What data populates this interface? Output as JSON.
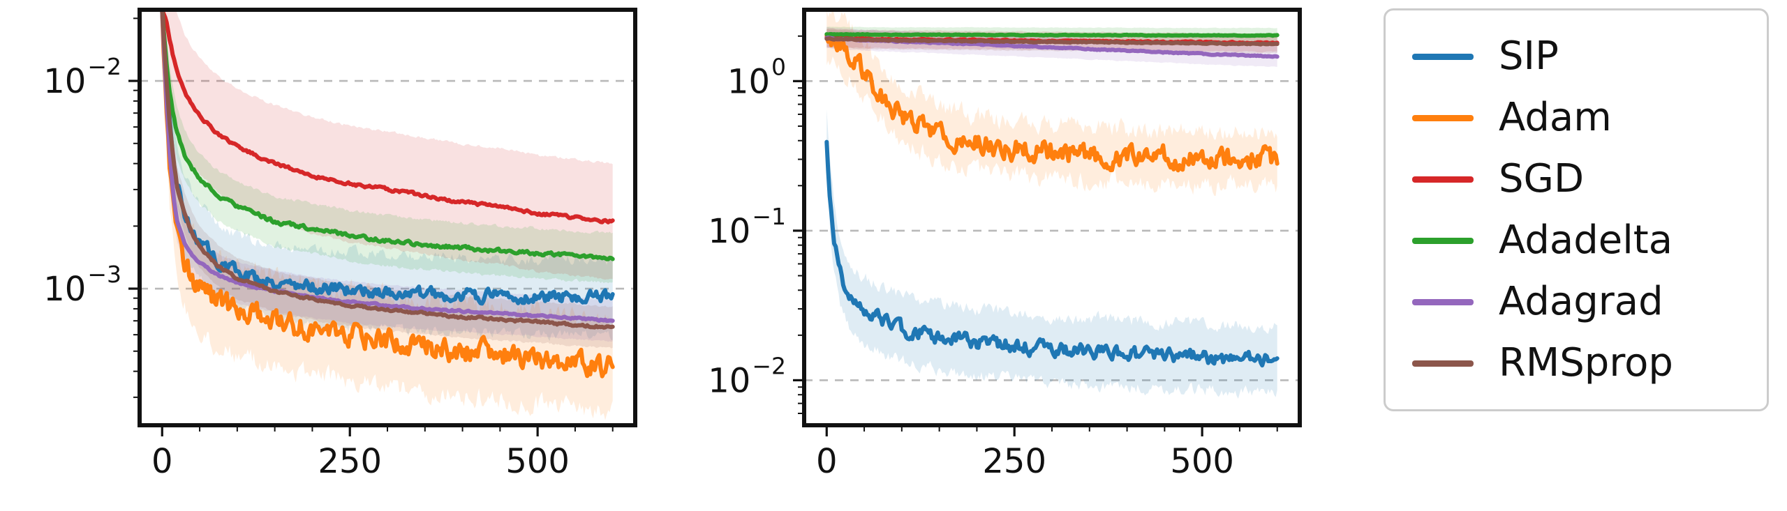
{
  "legend": {
    "items": [
      {
        "label": "SIP",
        "color": "#1f77b4"
      },
      {
        "label": "Adam",
        "color": "#ff7f0e"
      },
      {
        "label": "SGD",
        "color": "#d62728"
      },
      {
        "label": "Adadelta",
        "color": "#2ca02c"
      },
      {
        "label": "Adagrad",
        "color": "#9467bd"
      },
      {
        "label": "RMSprop",
        "color": "#8c564b"
      }
    ]
  },
  "chart_data": [
    {
      "id": "left-plot",
      "type": "line",
      "title": "",
      "xlabel": "",
      "ylabel": "",
      "yscale": "log",
      "grid": "dashed-horizontal",
      "xlim": [
        -30,
        630
      ],
      "ylim": [
        0.00022,
        0.022
      ],
      "x_ticks": [
        {
          "v": 0,
          "label": "0"
        },
        {
          "v": 250,
          "label": "250"
        },
        {
          "v": 500,
          "label": "500"
        }
      ],
      "x_minor_step": 50,
      "y_ticks": [
        {
          "v": 0.01,
          "base": "10",
          "exp": "−2"
        },
        {
          "v": 0.001,
          "base": "10",
          "exp": "−3"
        }
      ],
      "x": [
        0,
        5,
        10,
        15,
        20,
        30,
        40,
        50,
        75,
        100,
        150,
        200,
        250,
        300,
        350,
        400,
        450,
        500,
        550,
        600
      ],
      "series": [
        {
          "name": "SIP",
          "color": "#1f77b4",
          "seed": 3,
          "noise": 0.05,
          "band": 0.18,
          "values": [
            0.022,
            0.01,
            0.006,
            0.0042,
            0.0032,
            0.0023,
            0.0019,
            0.0017,
            0.00135,
            0.0012,
            0.00108,
            0.00102,
            0.00099,
            0.00096,
            0.00094,
            0.00093,
            0.00092,
            0.00091,
            0.00092,
            0.0009
          ]
        },
        {
          "name": "Adam",
          "color": "#ff7f0e",
          "seed": 7,
          "noise": 0.09,
          "band": 0.22,
          "values": [
            0.022,
            0.0085,
            0.0042,
            0.0026,
            0.0019,
            0.0014,
            0.00115,
            0.001,
            0.00086,
            0.00079,
            0.0007,
            0.00064,
            0.0006,
            0.00056,
            0.00053,
            0.0005,
            0.00048,
            0.00046,
            0.00044,
            0.00042
          ]
        },
        {
          "name": "SGD",
          "color": "#d62728",
          "seed": 11,
          "noise": 0.012,
          "band": 0.28,
          "values": [
            0.022,
            0.02,
            0.016,
            0.013,
            0.011,
            0.0088,
            0.0076,
            0.0068,
            0.0055,
            0.0048,
            0.004,
            0.0035,
            0.0032,
            0.003,
            0.0028,
            0.0026,
            0.0025,
            0.0023,
            0.0022,
            0.0021
          ]
        },
        {
          "name": "Adadelta",
          "color": "#2ca02c",
          "seed": 17,
          "noise": 0.015,
          "band": 0.12,
          "values": [
            0.022,
            0.013,
            0.009,
            0.0068,
            0.0056,
            0.0044,
            0.0038,
            0.0034,
            0.0028,
            0.0025,
            0.0021,
            0.00195,
            0.0018,
            0.0017,
            0.00163,
            0.00157,
            0.00152,
            0.00148,
            0.00144,
            0.0014
          ]
        },
        {
          "name": "Adagrad",
          "color": "#9467bd",
          "seed": 23,
          "noise": 0.008,
          "band": 0.1,
          "values": [
            0.022,
            0.009,
            0.0045,
            0.0028,
            0.0021,
            0.00165,
            0.00145,
            0.00133,
            0.00116,
            0.00107,
            0.00097,
            0.00091,
            0.00086,
            0.00083,
            0.0008,
            0.00078,
            0.00076,
            0.00074,
            0.00072,
            0.0007
          ]
        },
        {
          "name": "RMSprop",
          "color": "#8c564b",
          "seed": 29,
          "noise": 0.01,
          "band": 0.1,
          "values": [
            0.022,
            0.011,
            0.0062,
            0.0042,
            0.0031,
            0.0023,
            0.00185,
            0.00158,
            0.00128,
            0.00112,
            0.00097,
            0.00089,
            0.00083,
            0.00079,
            0.00076,
            0.00073,
            0.00071,
            0.00069,
            0.00067,
            0.00065
          ]
        }
      ]
    },
    {
      "id": "right-plot",
      "type": "line",
      "title": "",
      "xlabel": "",
      "ylabel": "",
      "yscale": "log",
      "grid": "dashed-horizontal",
      "xlim": [
        -30,
        630
      ],
      "ylim": [
        0.005,
        3.0
      ],
      "x_ticks": [
        {
          "v": 0,
          "label": "0"
        },
        {
          "v": 250,
          "label": "250"
        },
        {
          "v": 500,
          "label": "500"
        }
      ],
      "x_minor_step": 50,
      "y_ticks": [
        {
          "v": 1.0,
          "base": "10",
          "exp": "0"
        },
        {
          "v": 0.1,
          "base": "10",
          "exp": "−1"
        },
        {
          "v": 0.01,
          "base": "10",
          "exp": "−2"
        }
      ],
      "x": [
        0,
        5,
        10,
        15,
        20,
        30,
        40,
        50,
        75,
        100,
        150,
        200,
        250,
        300,
        350,
        400,
        450,
        500,
        550,
        600
      ],
      "series": [
        {
          "name": "SIP",
          "color": "#1f77b4",
          "seed": 3,
          "noise": 0.08,
          "band": 0.22,
          "values": [
            0.4,
            0.16,
            0.085,
            0.06,
            0.048,
            0.037,
            0.032,
            0.029,
            0.025,
            0.022,
            0.0195,
            0.018,
            0.017,
            0.016,
            0.0155,
            0.015,
            0.0146,
            0.0142,
            0.0139,
            0.0136
          ]
        },
        {
          "name": "Adam",
          "color": "#ff7f0e",
          "seed": 7,
          "noise": 0.12,
          "band": 0.18,
          "values": [
            2.0,
            1.95,
            1.9,
            1.82,
            1.74,
            1.55,
            1.35,
            1.15,
            0.8,
            0.6,
            0.44,
            0.385,
            0.355,
            0.335,
            0.325,
            0.315,
            0.308,
            0.303,
            0.305,
            0.3
          ]
        },
        {
          "name": "SGD",
          "color": "#d62728",
          "seed": 11,
          "noise": 0.008,
          "band": 0.06,
          "values": [
            1.95,
            1.95,
            1.94,
            1.94,
            1.93,
            1.93,
            1.92,
            1.92,
            1.91,
            1.9,
            1.89,
            1.88,
            1.87,
            1.86,
            1.85,
            1.84,
            1.83,
            1.82,
            1.81,
            1.8
          ]
        },
        {
          "name": "Adadelta",
          "color": "#2ca02c",
          "seed": 17,
          "noise": 0.004,
          "band": 0.05,
          "values": [
            2.05,
            2.05,
            2.05,
            2.05,
            2.05,
            2.05,
            2.05,
            2.05,
            2.04,
            2.04,
            2.04,
            2.04,
            2.03,
            2.03,
            2.03,
            2.03,
            2.02,
            2.02,
            2.02,
            2.02
          ]
        },
        {
          "name": "Adagrad",
          "color": "#9467bd",
          "seed": 23,
          "noise": 0.006,
          "band": 0.07,
          "values": [
            1.95,
            1.94,
            1.93,
            1.92,
            1.91,
            1.9,
            1.89,
            1.88,
            1.86,
            1.84,
            1.8,
            1.76,
            1.72,
            1.68,
            1.64,
            1.6,
            1.56,
            1.52,
            1.49,
            1.46
          ]
        },
        {
          "name": "RMSprop",
          "color": "#8c564b",
          "seed": 29,
          "noise": 0.006,
          "band": 0.06,
          "values": [
            1.92,
            1.92,
            1.91,
            1.91,
            1.9,
            1.9,
            1.89,
            1.89,
            1.88,
            1.87,
            1.86,
            1.85,
            1.84,
            1.83,
            1.82,
            1.81,
            1.8,
            1.79,
            1.78,
            1.77
          ]
        }
      ]
    }
  ]
}
